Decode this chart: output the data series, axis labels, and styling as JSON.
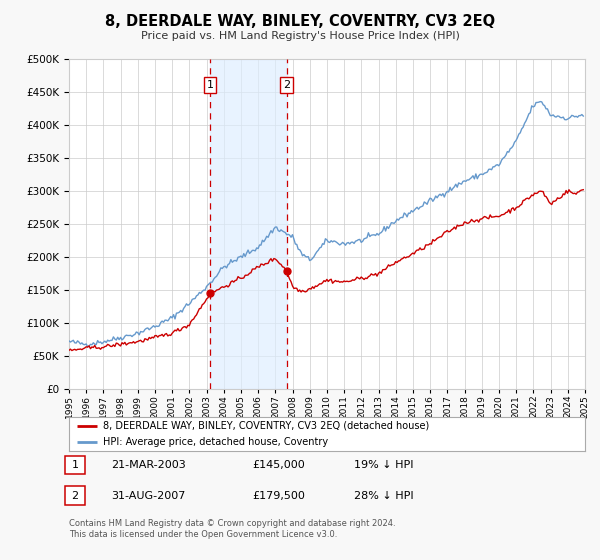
{
  "title": "8, DEERDALE WAY, BINLEY, COVENTRY, CV3 2EQ",
  "subtitle": "Price paid vs. HM Land Registry's House Price Index (HPI)",
  "legend_label_red": "8, DEERDALE WAY, BINLEY, COVENTRY, CV3 2EQ (detached house)",
  "legend_label_blue": "HPI: Average price, detached house, Coventry",
  "sale1_date": "21-MAR-2003",
  "sale1_price": "£145,000",
  "sale1_hpi": "19% ↓ HPI",
  "sale2_date": "31-AUG-2007",
  "sale2_price": "£179,500",
  "sale2_hpi": "28% ↓ HPI",
  "footer": "Contains HM Land Registry data © Crown copyright and database right 2024.\nThis data is licensed under the Open Government Licence v3.0.",
  "sale1_year": 2003.21,
  "sale2_year": 2007.66,
  "sale1_value": 145000,
  "sale2_value": 179500,
  "background_color": "#f8f8f8",
  "plot_background": "#ffffff",
  "red_color": "#cc0000",
  "blue_color": "#6699cc",
  "shade_color": "#ddeeff",
  "grid_color": "#cccccc",
  "ylim": [
    0,
    500000
  ],
  "xlim_start": 1995,
  "xlim_end": 2025
}
